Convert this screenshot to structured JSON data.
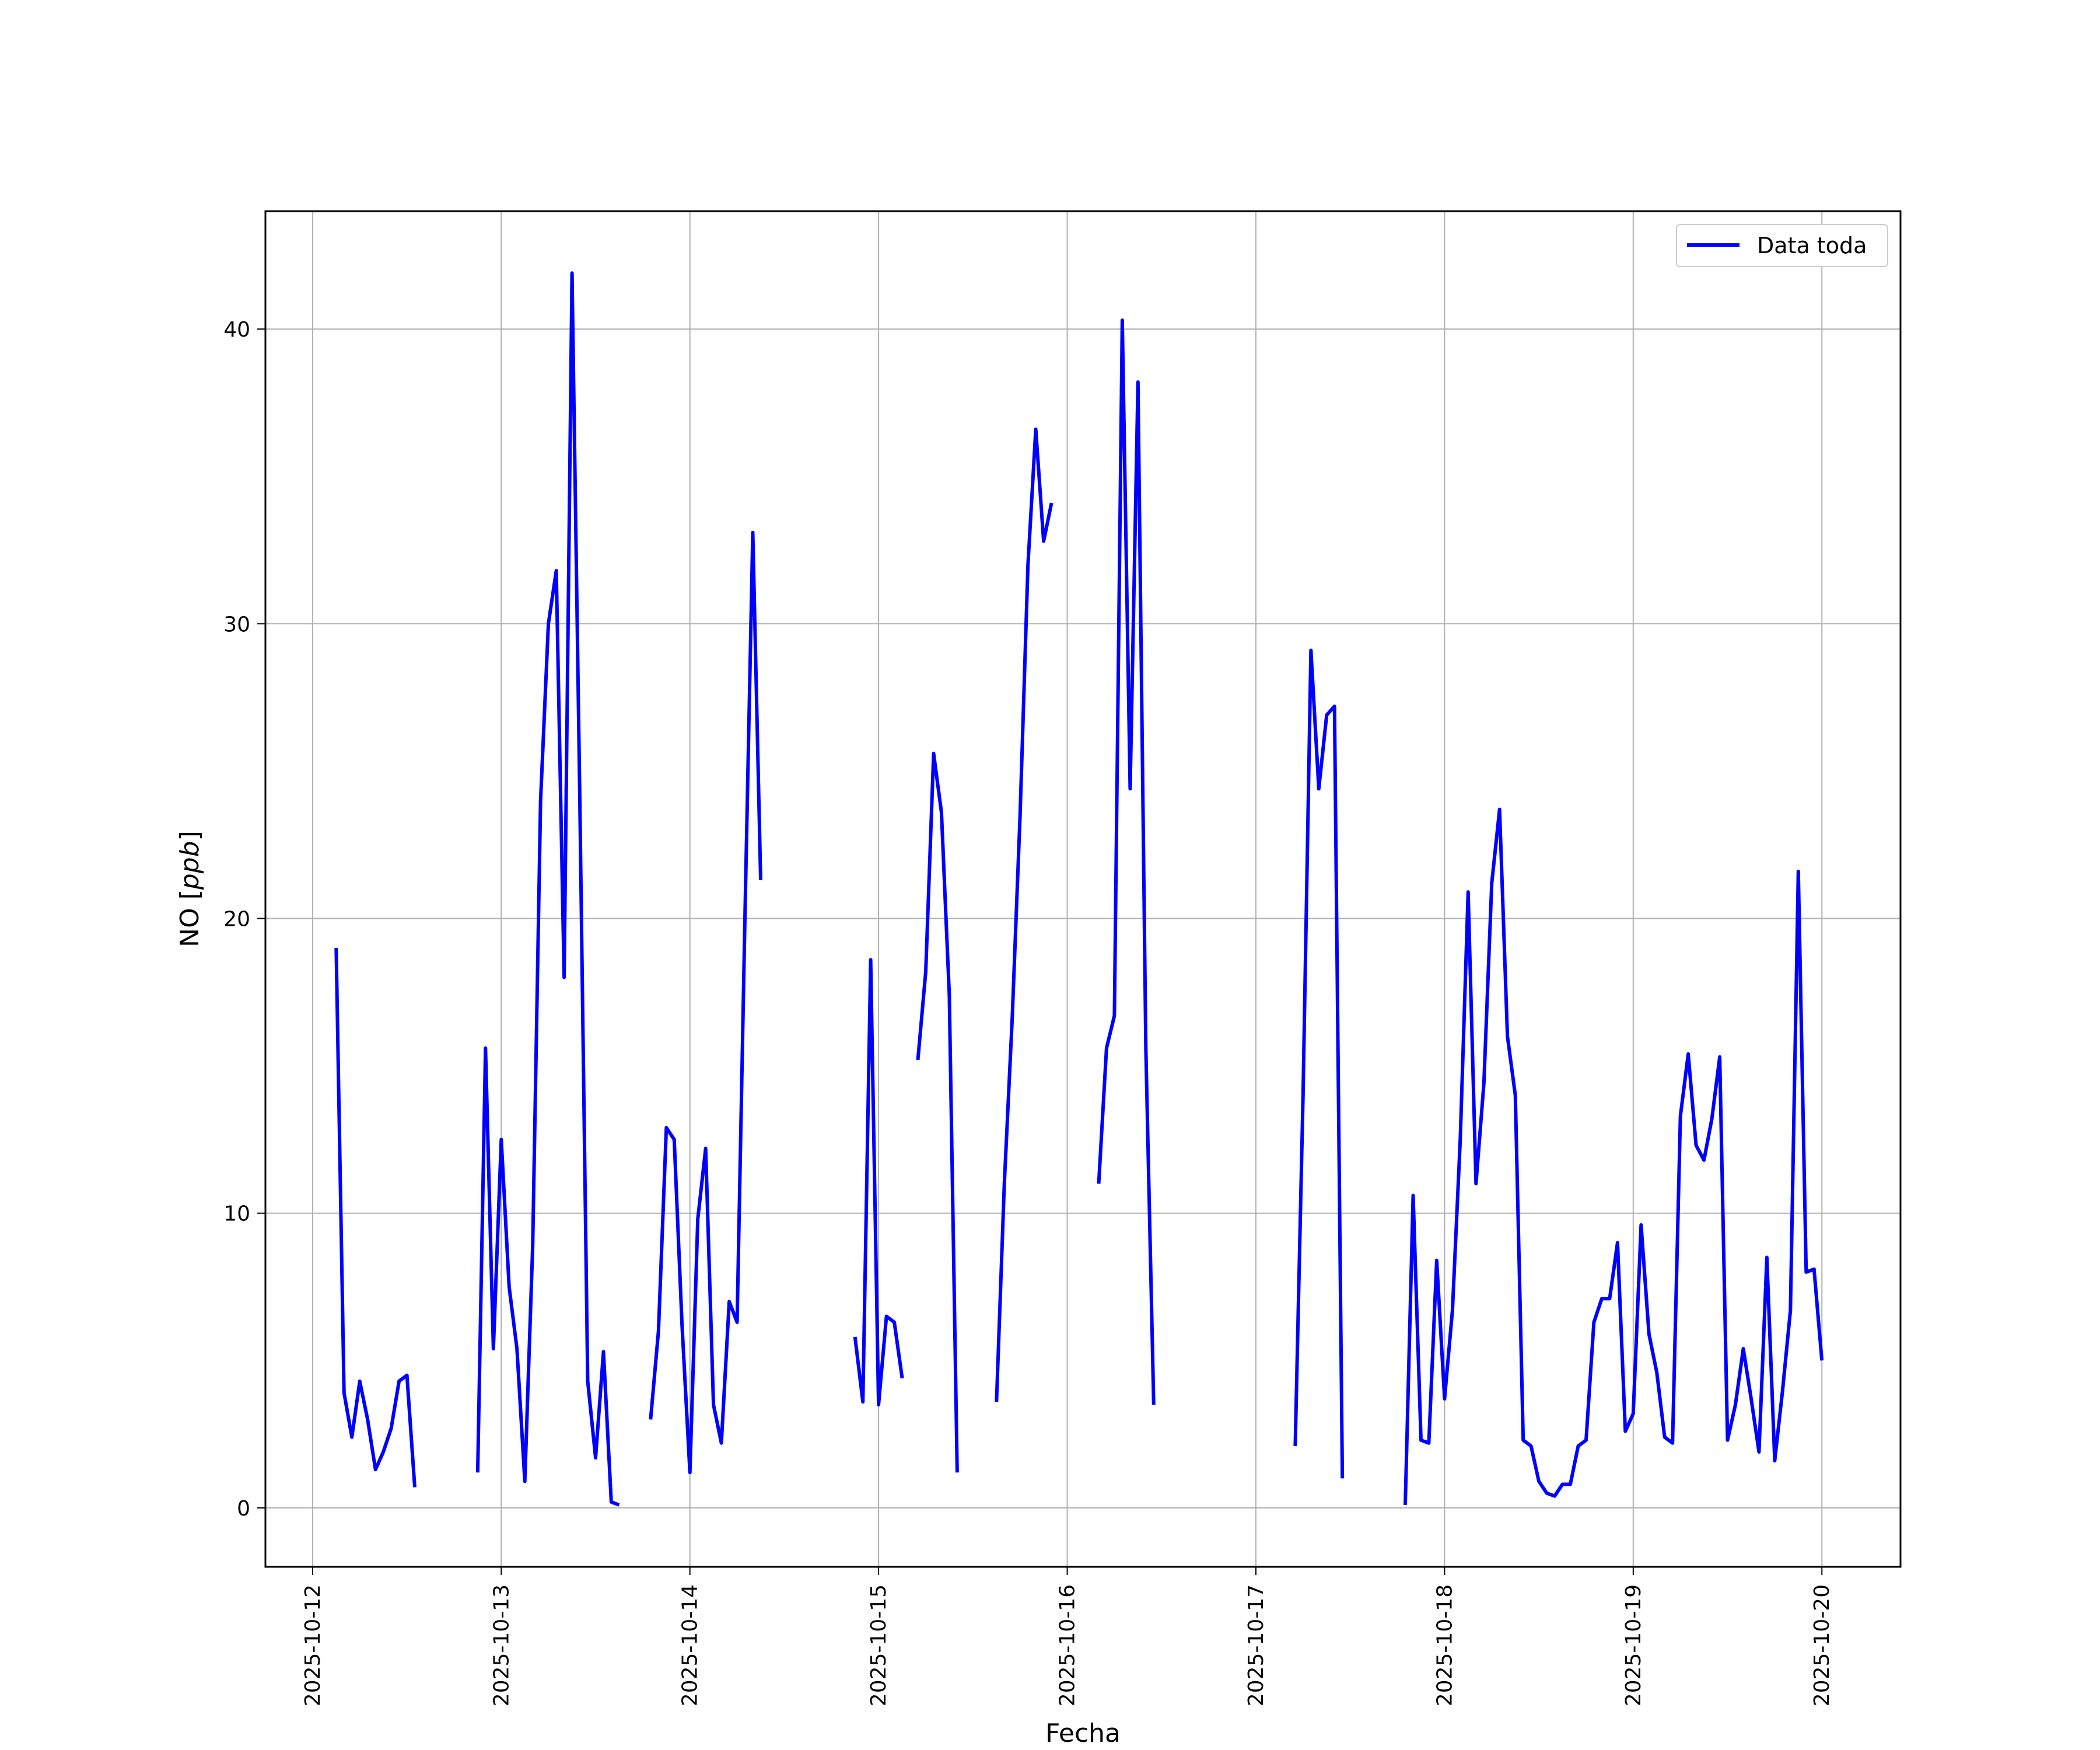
{
  "chart_data": {
    "type": "line",
    "title": "",
    "xlabel": "Fecha",
    "ylabel": "NO [ppb]",
    "ylabel_text": "NO ",
    "ylabel_unit": "ppb",
    "xlim": [
      "2025-10-11 18:00",
      "2025-10-20 10:00"
    ],
    "ylim": [
      -2,
      44
    ],
    "xticks": [
      "2025-10-12",
      "2025-10-13",
      "2025-10-14",
      "2025-10-15",
      "2025-10-16",
      "2025-10-17",
      "2025-10-18",
      "2025-10-19",
      "2025-10-20"
    ],
    "yticks": [
      0,
      10,
      20,
      30,
      40
    ],
    "grid": true,
    "legend_position": "top-right",
    "series": [
      {
        "name": "Data toda",
        "color": "#0000ff",
        "points": [
          [
            "2025-10-12 03:00",
            19.0
          ],
          [
            "2025-10-12 04:00",
            3.9
          ],
          [
            "2025-10-12 05:00",
            2.4
          ],
          [
            "2025-10-12 06:00",
            4.3
          ],
          [
            "2025-10-12 07:00",
            3.0
          ],
          [
            "2025-10-12 08:00",
            1.3
          ],
          [
            "2025-10-12 09:00",
            1.9
          ],
          [
            "2025-10-12 10:00",
            2.7
          ],
          [
            "2025-10-12 11:00",
            4.3
          ],
          [
            "2025-10-12 12:00",
            4.5
          ],
          [
            "2025-10-12 13:00",
            0.7
          ],
          null,
          [
            "2025-10-12 21:00",
            1.2
          ],
          [
            "2025-10-12 22:00",
            15.6
          ],
          [
            "2025-10-12 23:00",
            5.4
          ],
          [
            "2025-10-13 00:00",
            12.5
          ],
          [
            "2025-10-13 01:00",
            7.5
          ],
          [
            "2025-10-13 02:00",
            5.4
          ],
          [
            "2025-10-13 03:00",
            0.9
          ],
          [
            "2025-10-13 04:00",
            8.9
          ],
          [
            "2025-10-13 05:00",
            24.0
          ],
          [
            "2025-10-13 06:00",
            30.0
          ],
          [
            "2025-10-13 07:00",
            31.8
          ],
          [
            "2025-10-13 08:00",
            18.0
          ],
          [
            "2025-10-13 09:00",
            41.9
          ],
          [
            "2025-10-13 10:00",
            24.0
          ],
          [
            "2025-10-13 11:00",
            4.3
          ],
          [
            "2025-10-13 12:00",
            1.7
          ],
          [
            "2025-10-13 13:00",
            5.3
          ],
          [
            "2025-10-13 14:00",
            0.2
          ],
          [
            "2025-10-13 15:00",
            0.1
          ],
          null,
          [
            "2025-10-13 19:00",
            3.0
          ],
          [
            "2025-10-13 20:00",
            6.0
          ],
          [
            "2025-10-13 21:00",
            12.9
          ],
          [
            "2025-10-13 22:00",
            12.5
          ],
          [
            "2025-10-13 23:00",
            6.2
          ],
          [
            "2025-10-14 00:00",
            1.2
          ],
          [
            "2025-10-14 01:00",
            9.8
          ],
          [
            "2025-10-14 02:00",
            12.2
          ],
          [
            "2025-10-14 03:00",
            3.5
          ],
          [
            "2025-10-14 04:00",
            2.2
          ],
          [
            "2025-10-14 05:00",
            7.0
          ],
          [
            "2025-10-14 06:00",
            6.3
          ],
          [
            "2025-10-14 07:00",
            20.0
          ],
          [
            "2025-10-14 08:00",
            33.1
          ],
          [
            "2025-10-14 09:00",
            21.3
          ],
          null,
          [
            "2025-10-14 21:00",
            5.8
          ],
          [
            "2025-10-14 22:00",
            3.6
          ],
          [
            "2025-10-14 23:00",
            18.6
          ],
          [
            "2025-10-15 00:00",
            3.5
          ],
          [
            "2025-10-15 01:00",
            6.5
          ],
          [
            "2025-10-15 02:00",
            6.3
          ],
          [
            "2025-10-15 03:00",
            4.4
          ],
          null,
          [
            "2025-10-15 05:00",
            15.2
          ],
          [
            "2025-10-15 06:00",
            18.2
          ],
          [
            "2025-10-15 07:00",
            25.6
          ],
          [
            "2025-10-15 08:00",
            23.6
          ],
          [
            "2025-10-15 09:00",
            17.4
          ],
          [
            "2025-10-15 10:00",
            1.2
          ],
          null,
          [
            "2025-10-15 15:00",
            3.6
          ],
          [
            "2025-10-15 16:00",
            11.0
          ],
          [
            "2025-10-15 17:00",
            16.6
          ],
          [
            "2025-10-15 18:00",
            23.5
          ],
          [
            "2025-10-15 19:00",
            32.0
          ],
          [
            "2025-10-15 20:00",
            36.6
          ],
          [
            "2025-10-15 21:00",
            32.8
          ],
          [
            "2025-10-15 22:00",
            34.1
          ],
          null,
          [
            "2025-10-16 04:00",
            11.0
          ],
          [
            "2025-10-16 05:00",
            15.6
          ],
          [
            "2025-10-16 06:00",
            16.7
          ],
          [
            "2025-10-16 07:00",
            40.3
          ],
          [
            "2025-10-16 08:00",
            24.4
          ],
          [
            "2025-10-16 09:00",
            38.2
          ],
          [
            "2025-10-16 10:00",
            15.6
          ],
          [
            "2025-10-16 11:00",
            3.5
          ],
          null,
          [
            "2025-10-17 05:00",
            2.1
          ],
          [
            "2025-10-17 06:00",
            14.0
          ],
          [
            "2025-10-17 07:00",
            29.1
          ],
          [
            "2025-10-17 08:00",
            24.4
          ],
          [
            "2025-10-17 09:00",
            26.9
          ],
          [
            "2025-10-17 10:00",
            27.2
          ],
          [
            "2025-10-17 11:00",
            1.0
          ],
          null,
          [
            "2025-10-17 19:00",
            0.1
          ],
          [
            "2025-10-17 20:00",
            10.6
          ],
          [
            "2025-10-17 21:00",
            2.3
          ],
          [
            "2025-10-17 22:00",
            2.2
          ],
          [
            "2025-10-17 23:00",
            8.4
          ],
          [
            "2025-10-18 00:00",
            3.7
          ],
          [
            "2025-10-18 01:00",
            6.7
          ],
          [
            "2025-10-18 02:00",
            12.5
          ],
          [
            "2025-10-18 03:00",
            20.9
          ],
          [
            "2025-10-18 04:00",
            11.0
          ],
          [
            "2025-10-18 05:00",
            14.4
          ],
          [
            "2025-10-18 06:00",
            21.2
          ],
          [
            "2025-10-18 07:00",
            23.7
          ],
          [
            "2025-10-18 08:00",
            16.0
          ],
          [
            "2025-10-18 09:00",
            14.0
          ],
          [
            "2025-10-18 10:00",
            2.3
          ],
          [
            "2025-10-18 11:00",
            2.1
          ],
          [
            "2025-10-18 12:00",
            0.9
          ],
          [
            "2025-10-18 13:00",
            0.5
          ],
          [
            "2025-10-18 14:00",
            0.4
          ],
          [
            "2025-10-18 15:00",
            0.8
          ],
          [
            "2025-10-18 16:00",
            0.8
          ],
          [
            "2025-10-18 17:00",
            2.1
          ],
          [
            "2025-10-18 18:00",
            2.3
          ],
          [
            "2025-10-18 19:00",
            6.3
          ],
          [
            "2025-10-18 20:00",
            7.1
          ],
          [
            "2025-10-18 21:00",
            7.1
          ],
          [
            "2025-10-18 22:00",
            9.0
          ],
          [
            "2025-10-18 23:00",
            2.6
          ],
          [
            "2025-10-19 00:00",
            3.2
          ],
          [
            "2025-10-19 01:00",
            9.6
          ],
          [
            "2025-10-19 02:00",
            5.9
          ],
          [
            "2025-10-19 03:00",
            4.6
          ],
          [
            "2025-10-19 04:00",
            2.4
          ],
          [
            "2025-10-19 05:00",
            2.2
          ],
          [
            "2025-10-19 06:00",
            13.3
          ],
          [
            "2025-10-19 07:00",
            15.4
          ],
          [
            "2025-10-19 08:00",
            12.3
          ],
          [
            "2025-10-19 09:00",
            11.8
          ],
          [
            "2025-10-19 10:00",
            13.2
          ],
          [
            "2025-10-19 11:00",
            15.3
          ],
          [
            "2025-10-19 12:00",
            2.3
          ],
          [
            "2025-10-19 13:00",
            3.5
          ],
          [
            "2025-10-19 14:00",
            5.4
          ],
          [
            "2025-10-19 15:00",
            3.7
          ],
          [
            "2025-10-19 16:00",
            1.9
          ],
          [
            "2025-10-19 17:00",
            8.5
          ],
          [
            "2025-10-19 18:00",
            1.6
          ],
          [
            "2025-10-19 19:00",
            4.0
          ],
          [
            "2025-10-19 20:00",
            6.7
          ],
          [
            "2025-10-19 21:00",
            21.6
          ],
          [
            "2025-10-19 22:00",
            8.0
          ],
          [
            "2025-10-19 23:00",
            8.1
          ],
          [
            "2025-10-20 00:00",
            5.0
          ]
        ]
      }
    ]
  }
}
